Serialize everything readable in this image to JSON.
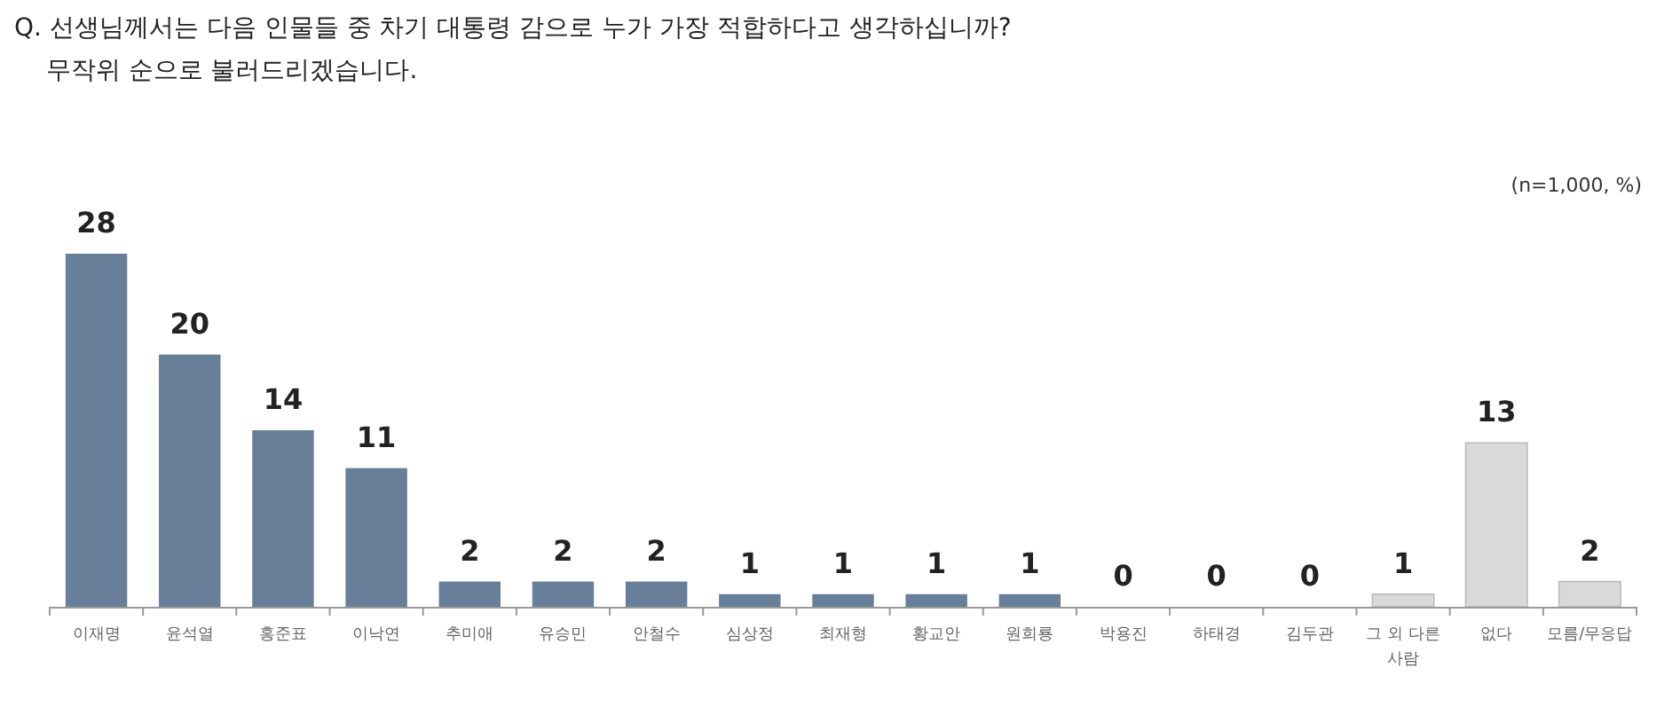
{
  "chart_data": {
    "type": "bar",
    "title": "Q. 선생님께서는 다음 인물들 중 차기 대통령 감으로 누가 가장 적합하다고 생각하십니까?\n    무작위 순으로 불러드리겠습니다.",
    "annotations": [
      "(n=1,000, %)"
    ],
    "categories": [
      "이재명",
      "윤석열",
      "홍준표",
      "이낙연",
      "추미애",
      "유승민",
      "안철수",
      "심상정",
      "최재형",
      "황교안",
      "원희룡",
      "박용진",
      "하태경",
      "김두관",
      "그 외 다른\n사람",
      "없다",
      "모름/무응답"
    ],
    "values": [
      28,
      20,
      14,
      11,
      2,
      2,
      2,
      1,
      1,
      1,
      1,
      0,
      0,
      0,
      1,
      13,
      2
    ],
    "colors": [
      "#677f99",
      "#677f99",
      "#677f99",
      "#677f99",
      "#677f99",
      "#677f99",
      "#677f99",
      "#677f99",
      "#677f99",
      "#677f99",
      "#677f99",
      "#677f99",
      "#677f99",
      "#677f99",
      "#d9d9d9",
      "#d9d9d9",
      "#d9d9d9"
    ],
    "data_labels": true
  }
}
